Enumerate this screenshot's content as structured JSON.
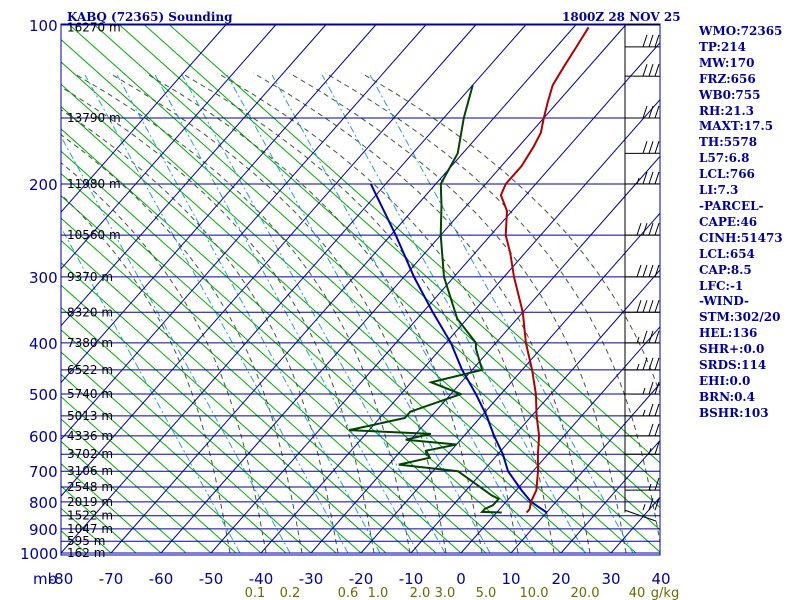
{
  "header": {
    "station": "KABQ (72365) Sounding",
    "valid_time": "1800Z 28 NOV 25"
  },
  "indices": [
    "WMO:72365",
    "TP:214",
    "MW:170",
    "FRZ:656",
    "WB0:755",
    "RH:21.3",
    "MAXT:17.5",
    "TH:5578",
    "L57:6.8",
    "LCL:766",
    "LI:7.3",
    "-PARCEL-",
    "CAPE:46",
    "CINH:51473",
    "LCL:654",
    "CAP:8.5",
    "LFC:-1",
    "-WIND-",
    "STM:302/20",
    "HEL:136",
    "SHR+:0.0",
    "SRDS:114",
    "EHI:0.0",
    "BRN:0.4",
    "BSHR:103"
  ],
  "colors": {
    "frame": "#0000a0",
    "isotherm": "#0000a0",
    "dry_adiabat": "#00b000",
    "moist_adiabat": "#3a5a3a",
    "mixing_ratio": "#2aa0c8",
    "temperature": "#b00000",
    "dewpoint": "#004400",
    "parcel": "#0000b0",
    "wind": "#000000"
  },
  "chart_data": {
    "type": "skew-t",
    "title": "KABQ (72365) Sounding",
    "x_unit_label": "mb",
    "pressure_levels": [
      100,
      200,
      300,
      400,
      500,
      600,
      700,
      800,
      900,
      1000
    ],
    "pressure_range": [
      100,
      1000
    ],
    "pressure_scale": "log",
    "temperature_ticks": [
      -80,
      -70,
      -60,
      -50,
      -40,
      -30,
      -20,
      -10,
      0,
      10,
      20,
      30,
      40
    ],
    "temperature_range": [
      -80,
      40
    ],
    "mixing_ratio_labels": [
      "0.1",
      "0.2",
      "0.6",
      "1.0",
      "2.0",
      "3.0",
      "5.0",
      "10.0",
      "20.0",
      "40",
      "g/kg"
    ],
    "height_labels": [
      {
        "p": 101,
        "label": "16270 m"
      },
      {
        "p": 150,
        "label": "13790 m"
      },
      {
        "p": 200,
        "label": "11980 m"
      },
      {
        "p": 250,
        "label": "10560 m"
      },
      {
        "p": 300,
        "label": "9370 m"
      },
      {
        "p": 350,
        "label": "8320 m"
      },
      {
        "p": 400,
        "label": "7380 m"
      },
      {
        "p": 450,
        "label": "6522 m"
      },
      {
        "p": 500,
        "label": "5740 m"
      },
      {
        "p": 550,
        "label": "5013 m"
      },
      {
        "p": 600,
        "label": "4336 m"
      },
      {
        "p": 650,
        "label": "3702 m"
      },
      {
        "p": 700,
        "label": "3106 m"
      },
      {
        "p": 750,
        "label": "2548 m"
      },
      {
        "p": 800,
        "label": "2019 m"
      },
      {
        "p": 850,
        "label": "1522 m"
      },
      {
        "p": 900,
        "label": "1047 m"
      },
      {
        "p": 950,
        "label": "595 m"
      },
      {
        "p": 1000,
        "label": "162 m"
      }
    ],
    "temperature_profile": [
      {
        "p": 838,
        "t": 6
      },
      {
        "p": 826,
        "t": 6
      },
      {
        "p": 800,
        "t": 5
      },
      {
        "p": 760,
        "t": 4
      },
      {
        "p": 700,
        "t": 1
      },
      {
        "p": 650,
        "t": -2
      },
      {
        "p": 600,
        "t": -5
      },
      {
        "p": 550,
        "t": -9
      },
      {
        "p": 500,
        "t": -13
      },
      {
        "p": 450,
        "t": -18
      },
      {
        "p": 400,
        "t": -24
      },
      {
        "p": 350,
        "t": -30
      },
      {
        "p": 300,
        "t": -38
      },
      {
        "p": 270,
        "t": -43
      },
      {
        "p": 250,
        "t": -47
      },
      {
        "p": 225,
        "t": -51
      },
      {
        "p": 210,
        "t": -55
      },
      {
        "p": 200,
        "t": -56
      },
      {
        "p": 185,
        "t": -56
      },
      {
        "p": 170,
        "t": -57
      },
      {
        "p": 160,
        "t": -58
      },
      {
        "p": 150,
        "t": -60
      },
      {
        "p": 140,
        "t": -62
      },
      {
        "p": 130,
        "t": -64
      },
      {
        "p": 120,
        "t": -65
      },
      {
        "p": 110,
        "t": -66
      },
      {
        "p": 101,
        "t": -67
      }
    ],
    "dewpoint_profile": [
      {
        "p": 838,
        "t": 1
      },
      {
        "p": 836,
        "t": -3
      },
      {
        "p": 825,
        "t": -3
      },
      {
        "p": 812,
        "t": -2
      },
      {
        "p": 790,
        "t": -2
      },
      {
        "p": 778,
        "t": -4
      },
      {
        "p": 700,
        "t": -15
      },
      {
        "p": 680,
        "t": -28
      },
      {
        "p": 660,
        "t": -23
      },
      {
        "p": 640,
        "t": -25
      },
      {
        "p": 623,
        "t": -20
      },
      {
        "p": 610,
        "t": -31
      },
      {
        "p": 595,
        "t": -27
      },
      {
        "p": 585,
        "t": -44
      },
      {
        "p": 555,
        "t": -35
      },
      {
        "p": 540,
        "t": -35
      },
      {
        "p": 500,
        "t": -28
      },
      {
        "p": 475,
        "t": -36
      },
      {
        "p": 450,
        "t": -28
      },
      {
        "p": 410,
        "t": -33
      },
      {
        "p": 400,
        "t": -34
      },
      {
        "p": 360,
        "t": -42
      },
      {
        "p": 300,
        "t": -52
      },
      {
        "p": 250,
        "t": -60
      },
      {
        "p": 220,
        "t": -65
      },
      {
        "p": 200,
        "t": -69
      },
      {
        "p": 175,
        "t": -71
      },
      {
        "p": 150,
        "t": -76
      },
      {
        "p": 130,
        "t": -80
      }
    ],
    "parcel_profile": [
      {
        "p": 838,
        "t": 10
      },
      {
        "p": 800,
        "t": 5
      },
      {
        "p": 760,
        "t": 1
      },
      {
        "p": 700,
        "t": -5
      },
      {
        "p": 650,
        "t": -9
      },
      {
        "p": 600,
        "t": -14
      },
      {
        "p": 550,
        "t": -19
      },
      {
        "p": 500,
        "t": -25
      },
      {
        "p": 450,
        "t": -32
      },
      {
        "p": 400,
        "t": -39
      },
      {
        "p": 350,
        "t": -48
      },
      {
        "p": 300,
        "t": -58
      },
      {
        "p": 250,
        "t": -69
      },
      {
        "p": 200,
        "t": -83
      }
    ],
    "wind_profile": [
      {
        "p": 830,
        "dir": 300,
        "spd": 35
      },
      {
        "p": 760,
        "dir": 270,
        "spd": 25
      },
      {
        "p": 650,
        "dir": 270,
        "spd": 25
      },
      {
        "p": 600,
        "dir": 270,
        "spd": 30
      },
      {
        "p": 550,
        "dir": 270,
        "spd": 35
      },
      {
        "p": 500,
        "dir": 270,
        "spd": 35
      },
      {
        "p": 450,
        "dir": 270,
        "spd": 45
      },
      {
        "p": 400,
        "dir": 270,
        "spd": 45
      },
      {
        "p": 350,
        "dir": 270,
        "spd": 50
      },
      {
        "p": 300,
        "dir": 270,
        "spd": 50
      },
      {
        "p": 250,
        "dir": 270,
        "spd": 50
      },
      {
        "p": 200,
        "dir": 270,
        "spd": 45
      },
      {
        "p": 175,
        "dir": 270,
        "spd": 40
      },
      {
        "p": 150,
        "dir": 270,
        "spd": 40
      },
      {
        "p": 125,
        "dir": 270,
        "spd": 40
      },
      {
        "p": 110,
        "dir": 270,
        "spd": 40
      },
      {
        "p": 100,
        "dir": 270,
        "spd": 40
      }
    ]
  }
}
